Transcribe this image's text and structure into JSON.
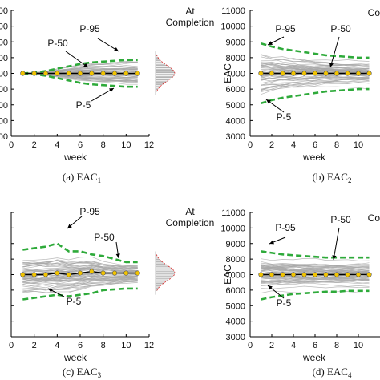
{
  "chart_data": [
    {
      "type": "line",
      "caption": "(a) EAC",
      "caption_sub": "1",
      "xlabel": "week",
      "ylabel": "",
      "xlim": [
        0,
        12
      ],
      "xticks": [
        "0",
        "2",
        "4",
        "6",
        "8",
        "10",
        "12"
      ],
      "ylim": [
        3000,
        11000
      ],
      "yticks": [
        "00",
        "00",
        "00",
        "00",
        "00",
        "00",
        "00",
        "00",
        "00"
      ],
      "annotations": [
        "P-95",
        "P-50",
        "P-5",
        "At",
        "Completion"
      ],
      "has_histogram": true,
      "series": [
        {
          "name": "P-95",
          "x": [
            1,
            2,
            3,
            4,
            5,
            6,
            7,
            8,
            9,
            10,
            11
          ],
          "values": [
            7000,
            7050,
            7150,
            7300,
            7450,
            7600,
            7700,
            7750,
            7800,
            7850,
            7850
          ]
        },
        {
          "name": "P-50",
          "x": [
            1,
            2,
            3,
            4,
            5,
            6,
            7,
            8,
            9,
            10,
            11
          ],
          "values": [
            7000,
            7000,
            7000,
            7000,
            7000,
            7000,
            7000,
            7000,
            7000,
            7000,
            7000
          ]
        },
        {
          "name": "P-5",
          "x": [
            1,
            2,
            3,
            4,
            5,
            6,
            7,
            8,
            9,
            10,
            11
          ],
          "values": [
            7000,
            6950,
            6850,
            6700,
            6550,
            6400,
            6300,
            6250,
            6200,
            6150,
            6150
          ]
        }
      ]
    },
    {
      "type": "line",
      "caption": "(b) EAC",
      "caption_sub": "2",
      "xlabel": "week",
      "ylabel": "EAC",
      "xlim": [
        0,
        12
      ],
      "xticks": [
        "0",
        "2",
        "4",
        "6",
        "8",
        "10"
      ],
      "ylim": [
        3000,
        11000
      ],
      "yticks": [
        "3000",
        "4000",
        "5000",
        "6000",
        "7000",
        "8000",
        "9000",
        "10000",
        "11000"
      ],
      "annotations": [
        "P-95",
        "P-50",
        "P-5",
        "Co"
      ],
      "has_histogram": false,
      "series": [
        {
          "name": "P-95",
          "x": [
            1,
            2,
            3,
            4,
            5,
            6,
            7,
            8,
            9,
            10,
            11
          ],
          "values": [
            8900,
            8700,
            8550,
            8450,
            8350,
            8250,
            8150,
            8100,
            8050,
            8000,
            8000
          ]
        },
        {
          "name": "P-50",
          "x": [
            1,
            2,
            3,
            4,
            5,
            6,
            7,
            8,
            9,
            10,
            11
          ],
          "values": [
            7000,
            7000,
            7000,
            7000,
            7000,
            7000,
            7000,
            7000,
            7000,
            7000,
            7000
          ]
        },
        {
          "name": "P-5",
          "x": [
            1,
            2,
            3,
            4,
            5,
            6,
            7,
            8,
            9,
            10,
            11
          ],
          "values": [
            5100,
            5300,
            5450,
            5550,
            5650,
            5750,
            5850,
            5900,
            5950,
            6000,
            6000
          ]
        }
      ]
    },
    {
      "type": "line",
      "caption": "(c) EAC",
      "caption_sub": "3",
      "xlabel": "week",
      "ylabel": "",
      "xlim": [
        0,
        12
      ],
      "xticks": [
        "0",
        "2",
        "4",
        "6",
        "8",
        "10",
        "12"
      ],
      "ylim": [
        3000,
        11000
      ],
      "yticks": [
        "",
        "",
        "",
        "",
        "",
        "",
        "",
        "",
        ""
      ],
      "annotations": [
        "P-95",
        "P-50",
        "P-5",
        "At",
        "Completion"
      ],
      "has_histogram": true,
      "series": [
        {
          "name": "P-95",
          "x": [
            1,
            2,
            3,
            4,
            5,
            6,
            7,
            8,
            9,
            10,
            11
          ],
          "values": [
            8600,
            8700,
            8800,
            9000,
            8500,
            8500,
            8300,
            8200,
            8000,
            7800,
            7800
          ]
        },
        {
          "name": "P-50",
          "x": [
            1,
            2,
            3,
            4,
            5,
            6,
            7,
            8,
            9,
            10,
            11
          ],
          "values": [
            7000,
            7000,
            7000,
            7100,
            7000,
            7100,
            7200,
            7100,
            7100,
            7100,
            7100
          ]
        },
        {
          "name": "P-5",
          "x": [
            1,
            2,
            3,
            4,
            5,
            6,
            7,
            8,
            9,
            10,
            11
          ],
          "values": [
            5400,
            5500,
            5600,
            5700,
            5600,
            5700,
            5800,
            6000,
            6050,
            6100,
            6100
          ]
        }
      ]
    },
    {
      "type": "line",
      "caption": "(d) EAC",
      "caption_sub": "4",
      "xlabel": "week",
      "ylabel": "EAC",
      "xlim": [
        0,
        12
      ],
      "xticks": [
        "0",
        "2",
        "4",
        "6",
        "8",
        "10"
      ],
      "ylim": [
        3000,
        11000
      ],
      "yticks": [
        "3000",
        "4000",
        "5000",
        "6000",
        "7000",
        "8000",
        "9000",
        "10000",
        "11000"
      ],
      "annotations": [
        "P-95",
        "P-50",
        "P-5",
        "Co"
      ],
      "has_histogram": false,
      "series": [
        {
          "name": "P-95",
          "x": [
            1,
            2,
            3,
            4,
            5,
            6,
            7,
            8,
            9,
            10,
            11
          ],
          "values": [
            8500,
            8400,
            8300,
            8250,
            8200,
            8150,
            8100,
            8100,
            8100,
            8100,
            8100
          ]
        },
        {
          "name": "P-50",
          "x": [
            1,
            2,
            3,
            4,
            5,
            6,
            7,
            8,
            9,
            10,
            11
          ],
          "values": [
            7000,
            7000,
            7000,
            7000,
            7000,
            7000,
            7000,
            7000,
            7000,
            7000,
            7000
          ]
        },
        {
          "name": "P-5",
          "x": [
            1,
            2,
            3,
            4,
            5,
            6,
            7,
            8,
            9,
            10,
            11
          ],
          "values": [
            5400,
            5550,
            5650,
            5750,
            5800,
            5850,
            5900,
            5900,
            5950,
            5950,
            5950
          ]
        }
      ]
    }
  ],
  "colors": {
    "percentile": "#2eaa3a",
    "median_line": "#000000",
    "median_marker": "#f2c400",
    "sim_lines": "#a8a8a8",
    "hist_bar": "#888888",
    "hist_curve": "#d93030"
  }
}
